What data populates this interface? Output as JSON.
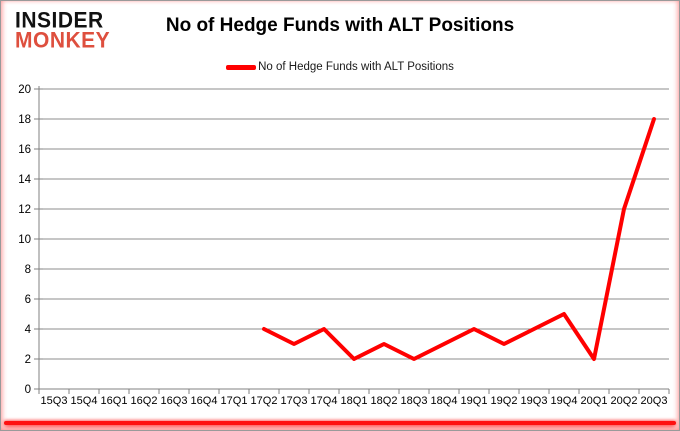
{
  "logo": {
    "line1": "INSIDER",
    "line2": "MONKEY"
  },
  "title": "No of Hedge Funds with ALT Positions",
  "legend": {
    "label": "No of Hedge Funds with ALT Positions",
    "marker_color": "#ff0000"
  },
  "colors": {
    "series_red": "#ff0000",
    "grid": "#8c8c8c",
    "axis": "#808080",
    "text": "#000000",
    "logo_black": "#111111",
    "logo_red": "#de4f3e",
    "accent_bar": "#ff0f0f"
  },
  "chart_data": {
    "type": "line",
    "title": "No of Hedge Funds with ALT Positions",
    "categories": [
      "15Q3",
      "15Q4",
      "16Q1",
      "16Q2",
      "16Q3",
      "16Q4",
      "17Q1",
      "17Q2",
      "17Q3",
      "17Q4",
      "18Q1",
      "18Q2",
      "18Q3",
      "18Q4",
      "19Q1",
      "19Q2",
      "19Q3",
      "19Q4",
      "20Q1",
      "20Q2",
      "20Q3"
    ],
    "series": [
      {
        "name": "No of Hedge Funds with ALT Positions",
        "color": "#ff0000",
        "start_index": 7,
        "values": [
          4,
          3,
          4,
          2,
          3,
          2,
          3,
          4,
          3,
          4,
          5,
          2,
          12,
          18
        ]
      }
    ],
    "xlabel": "",
    "ylabel": "",
    "ylim": [
      0,
      20
    ],
    "ytick_step": 2,
    "grid": true,
    "legend_position": "top"
  }
}
